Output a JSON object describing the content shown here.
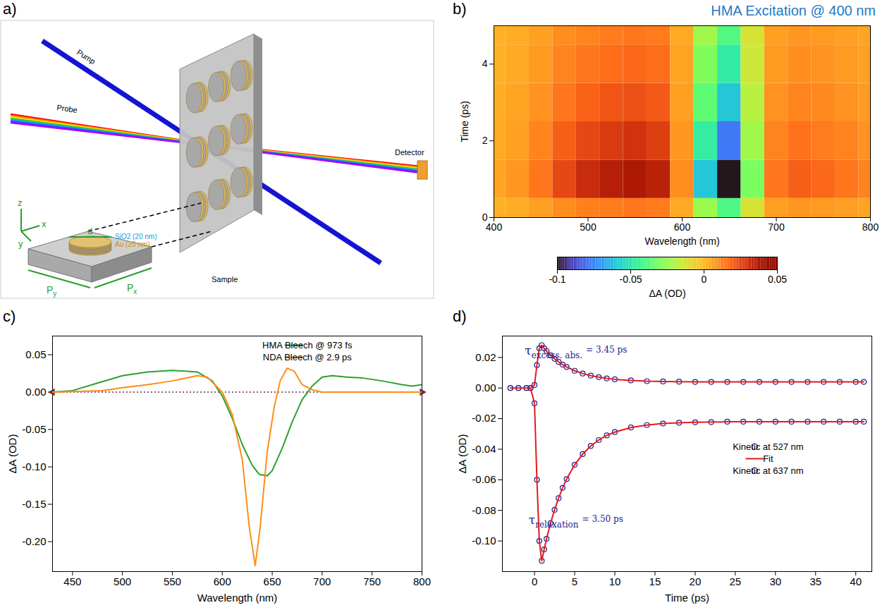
{
  "diagram": {
    "panel_label": "a)",
    "labels": {
      "pump": "Pump",
      "probe": "Probe",
      "detector": "Detector",
      "sample": "Sample",
      "layer_top": "SiO2 (20 nm)",
      "layer_bottom": "Au (20 nm)",
      "diameter": "d",
      "axis_x": "x",
      "axis_y": "y",
      "axis_z": "z",
      "period_x": {
        "text": "P",
        "sub": "x"
      },
      "period_y": {
        "text": "P",
        "sub": "y"
      }
    }
  },
  "chart_data": [
    {
      "type": "heatmap",
      "panel_label": "b)",
      "title": "HMA Excitation @ 400 nm",
      "x_label": "Wavelength (nm)",
      "y_label": "Time (ps)",
      "x": [
        400,
        425,
        450,
        475,
        500,
        525,
        550,
        575,
        600,
        625,
        650,
        675,
        700,
        725,
        750,
        775,
        800
      ],
      "y": [
        0,
        1,
        2,
        3,
        4,
        5
      ],
      "cells": [
        [
          0.002,
          0.003,
          0.006,
          0.01,
          0.013,
          0.014,
          0.015,
          0.014,
          0.004,
          -0.024,
          -0.04,
          -0.012,
          0.006,
          0.008,
          0.007,
          0.006,
          0.005
        ],
        [
          0.005,
          0.008,
          0.015,
          0.025,
          0.032,
          0.036,
          0.038,
          0.035,
          0.01,
          -0.06,
          -0.1,
          -0.03,
          0.015,
          0.02,
          0.018,
          0.015,
          0.012
        ],
        [
          0.004,
          0.006,
          0.012,
          0.02,
          0.025,
          0.028,
          0.03,
          0.027,
          0.008,
          -0.047,
          -0.078,
          -0.023,
          0.012,
          0.016,
          0.014,
          0.012,
          0.009
        ],
        [
          0.003,
          0.005,
          0.009,
          0.015,
          0.019,
          0.022,
          0.023,
          0.021,
          0.006,
          -0.036,
          -0.06,
          -0.018,
          0.009,
          0.012,
          0.011,
          0.009,
          0.007
        ],
        [
          0.002,
          0.004,
          0.007,
          0.012,
          0.015,
          0.017,
          0.018,
          0.017,
          0.005,
          -0.029,
          -0.048,
          -0.014,
          0.007,
          0.01,
          0.009,
          0.007,
          0.006
        ],
        [
          0.002,
          0.003,
          0.006,
          0.01,
          0.012,
          0.014,
          0.015,
          0.014,
          0.004,
          -0.023,
          -0.039,
          -0.012,
          0.006,
          0.008,
          0.007,
          0.006,
          0.005
        ]
      ],
      "xlim": [
        400,
        800
      ],
      "xticks": [
        400,
        500,
        600,
        700,
        800
      ],
      "ylim": [
        0,
        5
      ],
      "yticks": [
        0,
        2,
        4
      ],
      "colorbar": {
        "label": "ΔA (OD)",
        "range": [
          -0.1,
          0.05
        ],
        "ticks": [
          -0.1,
          -0.05,
          0,
          0.05
        ]
      }
    },
    {
      "type": "line",
      "panel_label": "c)",
      "x_label": "Wavelength (nm)",
      "y_label": "ΔA (OD)",
      "xlim": [
        430,
        800
      ],
      "xticks": [
        450,
        500,
        550,
        600,
        650,
        700,
        750,
        800
      ],
      "ylim": [
        -0.24,
        0.075
      ],
      "yticks": [
        {
          "value": -0.2,
          "label": "-0.20"
        },
        -0.15,
        {
          "value": -0.1,
          "label": "-0.10"
        },
        -0.05,
        {
          "value": 0,
          "label": "0.00"
        },
        0.05
      ],
      "legend": "top-right",
      "series": [
        {
          "name": "HMA Bleech @ 973 fs",
          "color": "#2ca02c",
          "x": [
            430,
            450,
            475,
            500,
            525,
            550,
            575,
            590,
            600,
            610,
            620,
            630,
            637,
            645,
            650,
            660,
            670,
            680,
            690,
            700,
            710,
            725,
            740,
            760,
            780,
            790,
            800
          ],
          "values": [
            0,
            0.002,
            0.012,
            0.022,
            0.027,
            0.029,
            0.027,
            0.015,
            -0.005,
            -0.035,
            -0.07,
            -0.098,
            -0.11,
            -0.112,
            -0.105,
            -0.075,
            -0.04,
            -0.01,
            0.008,
            0.02,
            0.022,
            0.02,
            0.019,
            0.015,
            0.01,
            0.008,
            0.01
          ]
        },
        {
          "name": "NDA Bleech @ 2.9 ps",
          "color": "#ff8c1a",
          "x": [
            430,
            480,
            500,
            525,
            550,
            575,
            585,
            600,
            610,
            620,
            627,
            633,
            638,
            645,
            652,
            658,
            665,
            672,
            680,
            690,
            700,
            750,
            800
          ],
          "values": [
            0,
            0.002,
            0.006,
            0.01,
            0.015,
            0.022,
            0.02,
            0,
            -0.03,
            -0.09,
            -0.18,
            -0.232,
            -0.18,
            -0.08,
            -0.02,
            0.015,
            0.032,
            0.028,
            0.01,
            0.003,
            0,
            0,
            0
          ]
        }
      ]
    },
    {
      "type": "scatter",
      "panel_label": "d)",
      "x_label": "Time (ps)",
      "y_label": "ΔA (OD)",
      "xlim": [
        -4,
        42
      ],
      "xticks": [
        0,
        5,
        10,
        15,
        20,
        25,
        30,
        35,
        40
      ],
      "ylim": [
        -0.12,
        0.034
      ],
      "yticks": [
        {
          "value": -0.1,
          "label": "-0.10"
        },
        -0.08,
        -0.06,
        -0.04,
        -0.02,
        {
          "value": 0,
          "label": "0.00"
        },
        0.02
      ],
      "legend": "right",
      "x": [
        -3,
        -2,
        -1,
        -0.5,
        0,
        0.3,
        0.6,
        0.9,
        1.2,
        1.5,
        2,
        2.5,
        3,
        3.5,
        4,
        5,
        6,
        7,
        8,
        9,
        10,
        12,
        14,
        16,
        18,
        20,
        22,
        24,
        26,
        28,
        30,
        32,
        34,
        36,
        38,
        40,
        41
      ],
      "annotations": [
        {
          "text": "τ",
          "subscript": "excess. abs.",
          "suffix": "= 3.45 ps"
        },
        {
          "text": "τ",
          "subscript": "relaxation",
          "suffix": "= 3.50 ps"
        }
      ],
      "series": [
        {
          "name": "Kinetic at 527 nm",
          "type": "scatter",
          "marker": "circle",
          "color": "#1c1c8c",
          "values": [
            0,
            0,
            0,
            0,
            0.002,
            0.015,
            0.026,
            0.028,
            0.026,
            0.0242,
            0.0214,
            0.0191,
            0.0171,
            0.0153,
            0.0138,
            0.0113,
            0.0095,
            0.0081,
            0.0071,
            0.0063,
            0.0057,
            0.005,
            0.0045,
            0.0043,
            0.0042,
            0.004,
            0.004,
            0.004,
            0.004,
            0.004,
            0.004,
            0.004,
            0.004,
            0.004,
            0.004,
            0.004,
            0.004
          ]
        },
        {
          "name": "Fit",
          "type": "line",
          "color": "#e41a1c",
          "x": [
            -3,
            -2,
            -1,
            -0.5,
            0,
            0.3,
            0.6,
            0.9,
            1.2,
            1.5,
            2,
            2.5,
            3,
            3.5,
            4,
            5,
            6,
            7,
            8,
            9,
            10,
            12,
            14,
            16,
            18,
            20,
            22,
            24,
            26,
            28,
            30,
            32,
            34,
            36,
            38,
            40,
            41,
            41,
            -3,
            -2,
            -1,
            -0.5,
            0,
            0.3,
            0.6,
            0.9,
            1.2,
            1.5,
            2,
            2.5,
            3,
            3.5,
            4,
            5,
            6,
            7,
            8,
            9,
            10,
            12,
            14,
            16,
            18,
            20,
            22,
            24,
            26,
            28,
            30,
            32,
            34,
            36,
            38,
            40,
            41
          ],
          "values": [
            0,
            0,
            0,
            0,
            0.002,
            0.015,
            0.026,
            0.028,
            0.026,
            0.0242,
            0.0214,
            0.0191,
            0.0171,
            0.0153,
            0.0138,
            0.0113,
            0.0095,
            0.0081,
            0.0071,
            0.0063,
            0.0057,
            0.005,
            0.0045,
            0.0043,
            0.0042,
            0.004,
            0.004,
            0.004,
            0.004,
            0.004,
            0.004,
            0.004,
            0.004,
            0.004,
            0.004,
            0.004,
            0.004,
            null,
            0,
            0,
            0,
            0,
            -0.01,
            -0.06,
            -0.1,
            -0.113,
            -0.1055,
            -0.0986,
            -0.0884,
            -0.0796,
            -0.072,
            -0.0653,
            -0.0595,
            -0.0502,
            -0.0432,
            -0.0379,
            -0.034,
            -0.031,
            -0.0288,
            -0.0258,
            -0.0242,
            -0.0232,
            -0.0227,
            -0.0224,
            -0.0223,
            -0.022,
            -0.022,
            -0.022,
            -0.022,
            -0.022,
            -0.022,
            -0.022,
            -0.022,
            -0.022,
            -0.022
          ]
        },
        {
          "name": "Kinetic at 637 nm",
          "type": "scatter",
          "marker": "circle",
          "color": "#1c1c8c",
          "values": [
            0,
            0,
            0,
            0,
            -0.01,
            -0.06,
            -0.1,
            -0.113,
            -0.1055,
            -0.0986,
            -0.0884,
            -0.0796,
            -0.072,
            -0.0653,
            -0.0595,
            -0.0502,
            -0.0432,
            -0.0379,
            -0.034,
            -0.031,
            -0.0288,
            -0.0258,
            -0.0242,
            -0.0232,
            -0.0227,
            -0.0224,
            -0.0223,
            -0.022,
            -0.022,
            -0.022,
            -0.022,
            -0.022,
            -0.022,
            -0.022,
            -0.022,
            -0.022,
            -0.022
          ]
        }
      ]
    }
  ]
}
